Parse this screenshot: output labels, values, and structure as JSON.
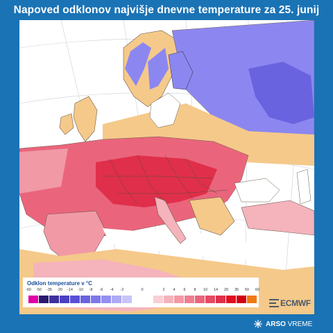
{
  "title": "Napoved odklonov najvišje dnevne temperature za 25. junij",
  "legend": {
    "title": "Odklon temperature v °C",
    "ticks": [
      "-60",
      "-50",
      "-35",
      "-20",
      "-14",
      "-10",
      "-8",
      "-6",
      "-4",
      "-2",
      "0",
      "2",
      "4",
      "6",
      "8",
      "10",
      "14",
      "20",
      "35",
      "50",
      "60"
    ],
    "colors_negative": [
      "#e000a8",
      "#2a1a6e",
      "#3f2fa0",
      "#4b3fc2",
      "#5a4fd6",
      "#6a63e0",
      "#7d78e8",
      "#948ff0",
      "#ada9f4",
      "#c8c5f8"
    ],
    "colors_positive": [
      "#f8cfd4",
      "#f5b3bc",
      "#f299a6",
      "#ee7f91",
      "#ea657c",
      "#e54a63",
      "#e02f4a",
      "#e01020",
      "#d40010",
      "#f07a10"
    ]
  },
  "logos": {
    "model": "ECMWF",
    "brand_bold": "ARSO",
    "brand_regular": "VREME"
  },
  "colors": {
    "background": "#1a73b5",
    "land_neutral": "#f5c98a",
    "warm": "#ea657c",
    "very_warm": "#e02f4a",
    "cool": "#8c87f0"
  }
}
